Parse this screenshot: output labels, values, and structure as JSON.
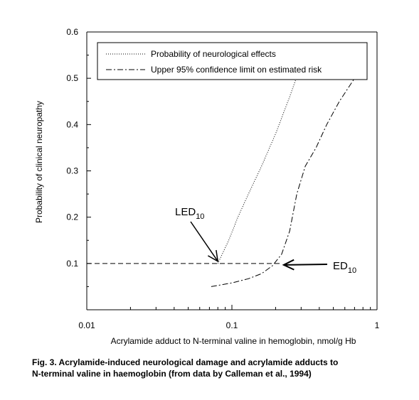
{
  "caption": {
    "line1": "Fig. 3. Acrylamide-induced neurological damage and acrylamide adducts to",
    "line2": "N-terminal valine in haemoglobin (from data by Calleman et al., 1994)"
  },
  "chart_data": {
    "type": "line",
    "title": "",
    "xlabel": "Acrylamide adduct to N-terminal valine in hemoglobin, nmol/g Hb",
    "ylabel": "Probability of clinical neuropathy",
    "xscale": "log",
    "xlim": [
      0.01,
      1
    ],
    "ylim": [
      0,
      0.6
    ],
    "xticks": [
      "0.01",
      "0.1",
      "1"
    ],
    "yticks": [
      "0.1",
      "0.2",
      "0.3",
      "0.4",
      "0.5",
      "0.6"
    ],
    "grid": false,
    "legend_position": "top",
    "series": [
      {
        "name": "Probability of neurological effects",
        "style": "dotted",
        "x": [
          0.08,
          0.095,
          0.11,
          0.13,
          0.16,
          0.2,
          0.25,
          0.3
        ],
        "y": [
          0.1,
          0.15,
          0.2,
          0.25,
          0.31,
          0.38,
          0.46,
          0.53
        ]
      },
      {
        "name": "Upper 95% confidence limit on estimated risk",
        "style": "dash-dot",
        "x": [
          0.072,
          0.1,
          0.13,
          0.16,
          0.19,
          0.22,
          0.25,
          0.28,
          0.32,
          0.38,
          0.45,
          0.55,
          0.7
        ],
        "y": [
          0.05,
          0.058,
          0.067,
          0.078,
          0.095,
          0.12,
          0.17,
          0.25,
          0.31,
          0.35,
          0.4,
          0.45,
          0.5
        ]
      }
    ],
    "reference_line": {
      "y": 0.1,
      "x_from": 0.01,
      "x_to": 0.22,
      "style": "dashed"
    },
    "annotations": [
      {
        "main": "LED",
        "sub": "10",
        "points_to": {
          "x": 0.08,
          "y": 0.1
        }
      },
      {
        "main": "ED",
        "sub": "10",
        "points_to": {
          "x": 0.22,
          "y": 0.1
        }
      }
    ]
  }
}
